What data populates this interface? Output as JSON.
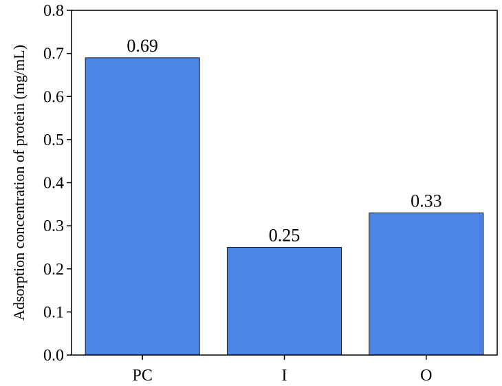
{
  "chart_data": {
    "type": "bar",
    "categories": [
      "PC",
      "I",
      "O"
    ],
    "values": [
      0.69,
      0.25,
      0.33
    ],
    "data_labels": [
      "0.69",
      "0.25",
      "0.33"
    ],
    "title": "",
    "xlabel": "",
    "ylabel": "Adsorption concentration of protein (mg/mL)",
    "ylim": [
      0,
      0.8
    ],
    "yticks": [
      0.0,
      0.1,
      0.2,
      0.3,
      0.4,
      0.5,
      0.6,
      0.7,
      0.8
    ],
    "ytick_labels": [
      "0.0",
      "0.1",
      "0.2",
      "0.3",
      "0.4",
      "0.5",
      "0.6",
      "0.7",
      "0.8"
    ],
    "grid": false,
    "legend": "none",
    "bar_color": "#4a86e8",
    "bar_edge_color": "#1a1a1a",
    "axis_color": "#000000"
  }
}
